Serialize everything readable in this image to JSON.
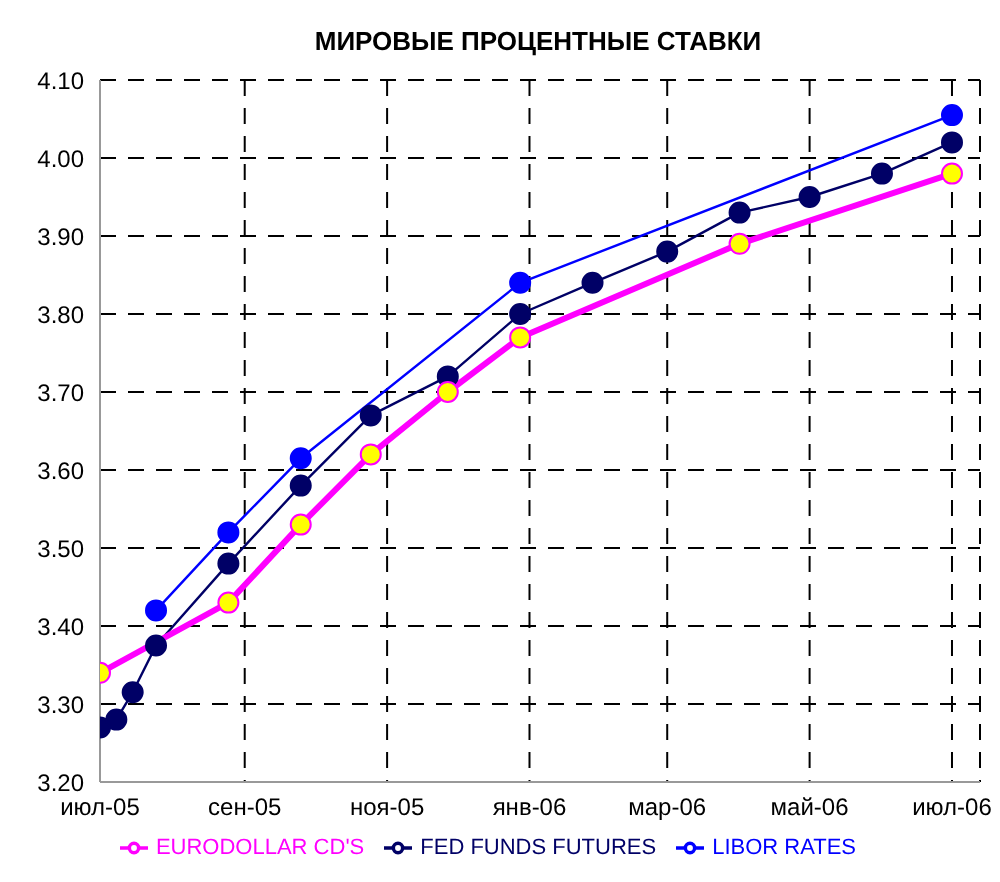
{
  "chart_data": {
    "type": "line",
    "title": "МИРОВЫЕ ПРОЦЕНТНЫЕ СТАВКИ",
    "series": [
      {
        "name": "LIBOR RATES",
        "color": "#0000ff",
        "x": [
          "2005-07-25",
          "2005-08-25",
          "2005-09-25",
          "2005-12-28",
          "2006-07-01"
        ],
        "values": [
          3.42,
          3.52,
          3.615,
          3.84,
          4.055
        ]
      },
      {
        "name": "FED FUNDS FUTURES",
        "color": "#000066",
        "x": [
          "2005-07-01",
          "2005-07-08",
          "2005-07-15",
          "2005-07-25",
          "2005-08-25",
          "2005-09-25",
          "2005-10-25",
          "2005-11-27",
          "2005-12-28",
          "2006-01-28",
          "2006-03-01",
          "2006-04-01",
          "2006-05-01",
          "2006-06-01",
          "2006-07-01"
        ],
        "values": [
          3.27,
          3.28,
          3.315,
          3.375,
          3.48,
          3.58,
          3.67,
          3.72,
          3.8,
          3.84,
          3.88,
          3.93,
          3.95,
          3.98,
          4.02
        ]
      },
      {
        "name": "EURODOLLAR CD'S",
        "color": "#ff00ff",
        "x": [
          "2005-07-01",
          "2005-08-25",
          "2005-09-25",
          "2005-10-25",
          "2005-11-27",
          "2005-12-28",
          "2006-04-01",
          "2006-07-01"
        ],
        "values": [
          3.34,
          3.43,
          3.53,
          3.62,
          3.7,
          3.77,
          3.89,
          3.98
        ]
      }
    ],
    "xlim": [
      "2005-07-01",
      "2006-07-13"
    ],
    "xticks": [
      {
        "value": "2005-07-01",
        "label": "июл-05"
      },
      {
        "value": "2005-09-01",
        "label": "сен-05"
      },
      {
        "value": "2005-11-01",
        "label": "ноя-05"
      },
      {
        "value": "2006-01-01",
        "label": "янв-06"
      },
      {
        "value": "2006-03-01",
        "label": "мар-06"
      },
      {
        "value": "2006-05-01",
        "label": "май-06"
      },
      {
        "value": "2006-07-01",
        "label": "июл-06"
      }
    ],
    "ylim": [
      3.2,
      4.1
    ],
    "yticks": [
      {
        "value": 3.2,
        "label": "3.20"
      },
      {
        "value": 3.3,
        "label": "3.30"
      },
      {
        "value": 3.4,
        "label": "3.40"
      },
      {
        "value": 3.5,
        "label": "3.50"
      },
      {
        "value": 3.6,
        "label": "3.60"
      },
      {
        "value": 3.7,
        "label": "3.70"
      },
      {
        "value": 3.8,
        "label": "3.80"
      },
      {
        "value": 3.9,
        "label": "3.90"
      },
      {
        "value": 4.0,
        "label": "4.00"
      },
      {
        "value": 4.1,
        "label": "4.10"
      }
    ],
    "grid": true,
    "legend": "bottom",
    "marker": "circle"
  }
}
